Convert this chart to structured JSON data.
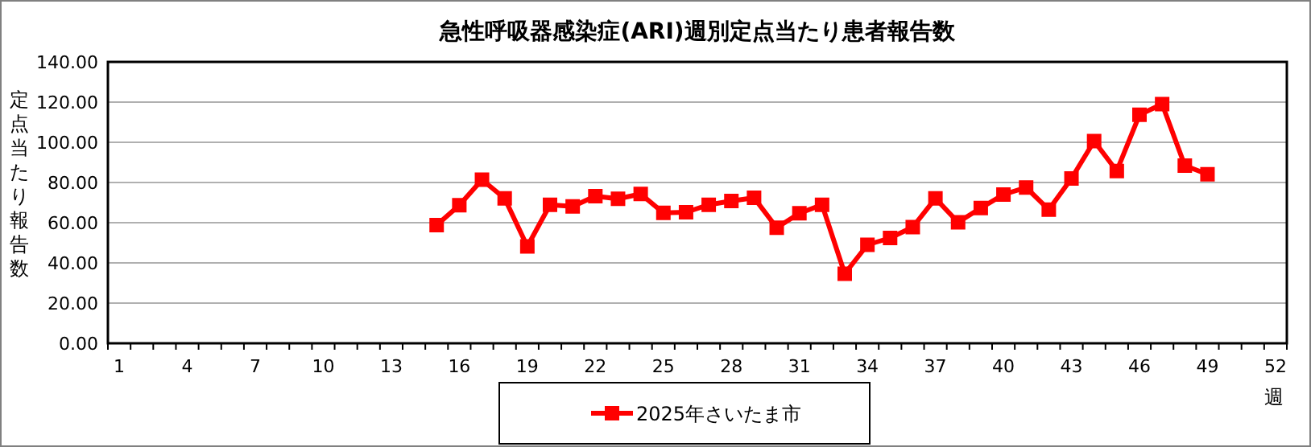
{
  "chart_data": {
    "type": "line",
    "title": "急性呼吸器感染症(ARI)週別定点当たり患者報告数",
    "xlabel": "週",
    "ylabel": "定点当たり報告数",
    "categories": [
      "1",
      null,
      null,
      "4",
      null,
      null,
      "7",
      null,
      null,
      "10",
      null,
      null,
      "13",
      null,
      null,
      "16",
      null,
      null,
      "19",
      null,
      null,
      "22",
      null,
      null,
      "25",
      null,
      null,
      "28",
      null,
      null,
      "31",
      null,
      null,
      "34",
      null,
      null,
      "37",
      null,
      null,
      "40",
      null,
      null,
      "43",
      null,
      null,
      "46",
      null,
      null,
      "49",
      null,
      null,
      "52"
    ],
    "series": [
      {
        "name": "2025年さいたま市",
        "color": "#ff0000",
        "values": [
          null,
          null,
          null,
          null,
          null,
          null,
          null,
          null,
          null,
          null,
          null,
          null,
          null,
          null,
          58.8,
          68.7,
          81.4,
          72.1,
          48.2,
          68.9,
          68.1,
          73.2,
          71.9,
          74.3,
          64.9,
          65.2,
          68.9,
          70.8,
          72.4,
          57.5,
          64.7,
          68.9,
          34.6,
          49.0,
          52.4,
          57.8,
          72.1,
          60.2,
          67.3,
          74.0,
          77.5,
          66.5,
          82.0,
          100.6,
          85.7,
          113.7,
          119.0,
          88.4,
          84.1,
          null,
          null,
          null
        ]
      }
    ],
    "ylim": [
      0,
      140
    ],
    "yticks": [
      {
        "value": 0,
        "label": "0.00"
      },
      {
        "value": 20,
        "label": "20.00"
      },
      {
        "value": 40,
        "label": "40.00"
      },
      {
        "value": 60,
        "label": "60.00"
      },
      {
        "value": 80,
        "label": "80.00"
      },
      {
        "value": 100,
        "label": "100.00"
      },
      {
        "value": 120,
        "label": "120.00"
      },
      {
        "value": 140,
        "label": "140.00"
      }
    ],
    "grid": "y",
    "legend": "bottom",
    "marker": "square",
    "line_style": "solid"
  }
}
